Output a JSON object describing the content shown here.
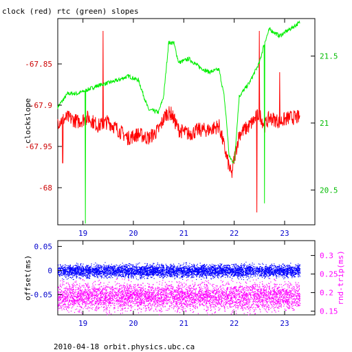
{
  "header": {
    "title": "clock (red) rtc (green) slopes",
    "footer": "2010-04-18 orbit.physics.ubc.ca"
  },
  "colors": {
    "red": "#ff0000",
    "green": "#00ee00",
    "blue": "#0000ff",
    "magenta": "#ff00ff",
    "axis": "#000000"
  },
  "chart_data": [
    {
      "type": "line",
      "title": "clock (red) rtc (green) slopes",
      "xlabel": "",
      "ylabel": "clockslope",
      "xlim": [
        18.5,
        23.6
      ],
      "ylim": [
        -68.045,
        -67.795
      ],
      "y2lim": [
        20.24,
        21.78
      ],
      "x_ticks": [
        19,
        20,
        21,
        22,
        23
      ],
      "y_ticks": [
        -67.85,
        -67.9,
        -67.95,
        -68
      ],
      "y_tick_labels": [
        "-67.85",
        "-67.9",
        "-67.95",
        "-68"
      ],
      "y2_ticks": [
        21.5,
        21,
        20.5
      ],
      "y2_tick_labels": [
        "21.5",
        "21",
        "20.5"
      ],
      "grid": false,
      "series": [
        {
          "name": "clock",
          "axis": "left",
          "color": "red",
          "x": [
            18.5,
            18.7,
            18.9,
            19.1,
            19.3,
            19.5,
            19.7,
            19.9,
            20.1,
            20.3,
            20.5,
            20.65,
            20.75,
            20.9,
            21.1,
            21.3,
            21.5,
            21.7,
            21.8,
            21.9,
            21.95,
            22.0,
            22.1,
            22.3,
            22.5,
            22.6,
            22.7,
            22.9,
            23.1,
            23.3
          ],
          "y": [
            -67.92,
            -67.915,
            -67.92,
            -67.915,
            -67.925,
            -67.92,
            -67.93,
            -67.94,
            -67.935,
            -67.94,
            -67.93,
            -67.91,
            -67.91,
            -67.93,
            -67.935,
            -67.93,
            -67.93,
            -67.925,
            -67.95,
            -67.975,
            -67.985,
            -67.965,
            -67.935,
            -67.925,
            -67.91,
            -67.925,
            -67.915,
            -67.92,
            -67.915,
            -67.915
          ]
        },
        {
          "name": "rtc",
          "axis": "right",
          "color": "green",
          "x": [
            18.5,
            18.7,
            18.9,
            19.1,
            19.3,
            19.5,
            19.7,
            19.9,
            20.1,
            20.3,
            20.5,
            20.6,
            20.7,
            20.8,
            20.9,
            21.1,
            21.3,
            21.5,
            21.7,
            21.8,
            21.85,
            21.9,
            22.0,
            22.1,
            22.3,
            22.5,
            22.6,
            22.7,
            22.9,
            23.1,
            23.3
          ],
          "y": [
            21.12,
            21.22,
            21.22,
            21.25,
            21.28,
            21.3,
            21.32,
            21.35,
            21.32,
            21.1,
            21.08,
            21.2,
            21.6,
            21.6,
            21.45,
            21.48,
            21.42,
            21.38,
            21.4,
            21.2,
            21.0,
            20.75,
            20.7,
            21.2,
            21.3,
            21.45,
            21.6,
            21.7,
            21.65,
            21.7,
            21.75
          ]
        }
      ]
    },
    {
      "type": "scatter",
      "xlabel": "",
      "ylabel": "offset(ms)",
      "y2label": "rnd-trip(ms)",
      "xlim": [
        18.5,
        23.6
      ],
      "ylim": [
        -0.092,
        0.062
      ],
      "y2lim": [
        0.14,
        0.34
      ],
      "x_ticks": [
        19,
        20,
        21,
        22,
        23
      ],
      "y_ticks": [
        0.05,
        0,
        -0.05
      ],
      "y_tick_labels": [
        "0.05",
        "0",
        "-0.05"
      ],
      "y2_ticks": [
        0.3,
        0.25,
        0.2,
        0.15
      ],
      "y2_tick_labels": [
        "0.3",
        "0.25",
        "0.2",
        "0.15"
      ],
      "grid": false,
      "series": [
        {
          "name": "offset",
          "axis": "left",
          "color": "blue",
          "center": 0.0,
          "spread": 0.008,
          "x_range": [
            18.5,
            23.3
          ]
        },
        {
          "name": "rnd-trip",
          "axis": "right",
          "color": "magenta",
          "center": 0.19,
          "spread": 0.022,
          "x_range": [
            18.5,
            23.3
          ]
        }
      ]
    }
  ]
}
